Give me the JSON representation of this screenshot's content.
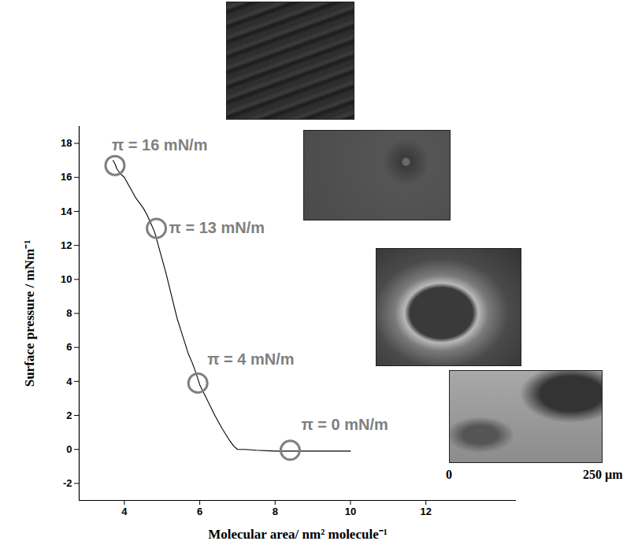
{
  "chart_data": {
    "type": "line",
    "x_label": "Molecular area/ nm² molecule⁻¹",
    "y_label": "Surface pressure / mNm⁻¹",
    "color": "#000000",
    "x": [
      10.0,
      9.5,
      9.0,
      8.5,
      8.0,
      7.5,
      7.2,
      7.0,
      6.9,
      6.8,
      6.6,
      6.4,
      6.2,
      6.0,
      5.9,
      5.8,
      5.7,
      5.6,
      5.5,
      5.4,
      5.3,
      5.2,
      5.1,
      5.0,
      4.9,
      4.8,
      4.7,
      4.6,
      4.5,
      4.4,
      4.3,
      4.2,
      4.1,
      4.0,
      3.9,
      3.8,
      3.75,
      3.7
    ],
    "values": [
      -0.1,
      -0.1,
      -0.1,
      -0.1,
      -0.1,
      -0.05,
      0.0,
      0.0,
      0.2,
      0.5,
      1.2,
      2.0,
      2.9,
      3.8,
      4.5,
      5.1,
      5.6,
      6.3,
      7.0,
      7.7,
      8.6,
      9.5,
      10.4,
      11.2,
      12.0,
      12.8,
      13.3,
      13.8,
      14.2,
      14.5,
      14.8,
      15.2,
      15.6,
      16.0,
      16.2,
      16.5,
      16.8,
      17.0
    ],
    "xlim": [
      2.8,
      14.4
    ],
    "ylim": [
      -3,
      19
    ],
    "xticks": [
      4,
      6,
      8,
      10,
      12
    ],
    "yticks": [
      -2,
      0,
      2,
      4,
      6,
      8,
      10,
      12,
      14,
      16,
      18
    ],
    "grid": false,
    "annotations": [
      {
        "text": "π = 16 mN/m",
        "x": 3.75,
        "y": 16.7
      },
      {
        "text": "π = 13 mN/m",
        "x": 4.85,
        "y": 13.0
      },
      {
        "text": "π = 4 mN/m",
        "x": 5.95,
        "y": 3.9
      },
      {
        "text": "π = 0 mN/m",
        "x": 8.4,
        "y": -0.05
      }
    ],
    "annotation_color": "#808080"
  },
  "images": {
    "scale_labels": [
      "0",
      "250 µm"
    ]
  }
}
